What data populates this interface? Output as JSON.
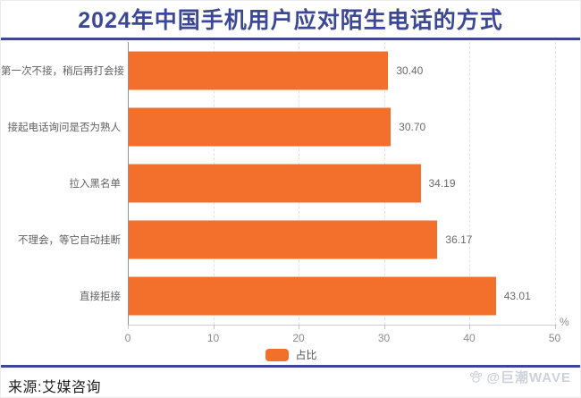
{
  "title": "2024年中国手机用户应对陌生电话的方式",
  "chart_data": {
    "type": "bar",
    "orientation": "horizontal",
    "title": "2024年中国手机用户应对陌生电话的方式",
    "categories": [
      "第一次不接，稍后再打会接",
      "接起电话询问是否为熟人",
      "拉入黑名单",
      "不理会，等它自动挂断",
      "直接拒接"
    ],
    "values": [
      30.4,
      30.7,
      34.19,
      36.17,
      43.01
    ],
    "value_labels": [
      "30.40",
      "30.70",
      "34.19",
      "36.17",
      "43.01"
    ],
    "series_name": "占比",
    "xlabel": "",
    "ylabel": "",
    "x_unit": "%",
    "xlim": [
      0,
      50
    ],
    "x_ticks": [
      0,
      10,
      20,
      30,
      40,
      50
    ],
    "grid": "dashed-vertical-gridlines",
    "legend_position": "bottom-center",
    "bar_color": "#F2702C"
  },
  "legend": {
    "label": "占比"
  },
  "axis": {
    "unit": "%"
  },
  "footer": {
    "source": "来源:艾媒咨询",
    "watermark_text": "@巨潮WAVE",
    "watermark_icon": "paw-icon"
  },
  "colors": {
    "accent_orange": "#F2702C",
    "title_navy": "#3C4894",
    "label_gray": "#606060",
    "tick_gray": "#8b8b8b",
    "watermark_gray": "#ccd2da"
  }
}
